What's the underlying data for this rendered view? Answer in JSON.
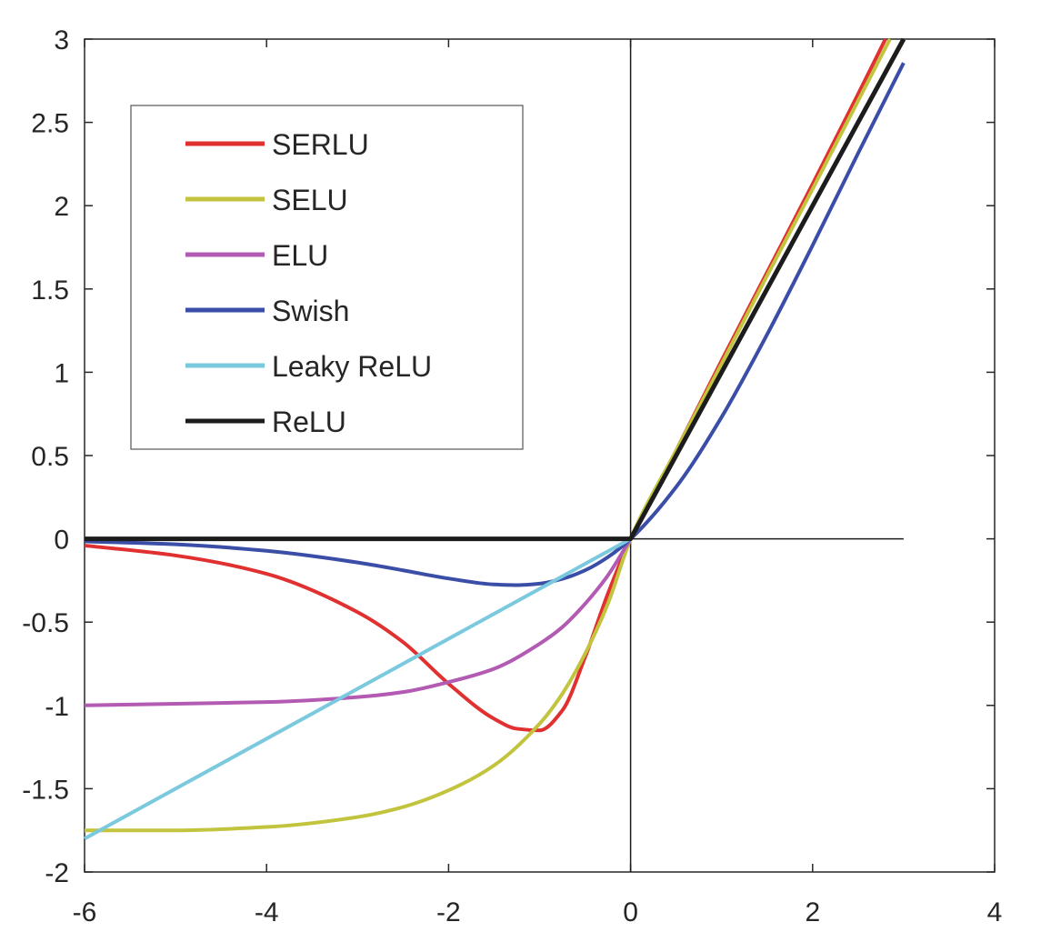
{
  "chart_data": {
    "type": "line",
    "title": "",
    "xlabel": "",
    "ylabel": "",
    "xlim": [
      -6,
      4
    ],
    "ylim": [
      -2,
      3
    ],
    "x_ticks": [
      -6,
      -4,
      -2,
      0,
      2,
      4
    ],
    "x_tick_labels": [
      "-6",
      "-4",
      "-2",
      "0",
      "2",
      "4"
    ],
    "y_ticks": [
      -2,
      -1.5,
      -1,
      -0.5,
      0,
      0.5,
      1,
      1.5,
      2,
      2.5,
      3
    ],
    "y_tick_labels": [
      "-2",
      "-1.5",
      "-1",
      "-0.5",
      "0",
      "0.5",
      "1",
      "1.5",
      "2",
      "2.5",
      "3"
    ],
    "grid": false,
    "axis_lines_through_origin": true,
    "legend_position": "top-left",
    "x_range_plotted": [
      -6,
      3
    ],
    "series": [
      {
        "name": "SERLU",
        "color": "#e03030",
        "x": [
          -6,
          -5,
          -4,
          -3,
          -2.5,
          -2,
          -1.5,
          -1.25,
          -1,
          -0.75,
          -0.5,
          -0.25,
          0,
          0.5,
          1,
          1.5,
          2,
          2.5,
          2.8
        ],
        "y": [
          -0.04,
          -0.1,
          -0.21,
          -0.44,
          -0.62,
          -0.87,
          -1.08,
          -1.14,
          -1.15,
          -1.03,
          -0.71,
          -0.33,
          0,
          0.53,
          1.07,
          1.6,
          2.13,
          2.67,
          3.0
        ]
      },
      {
        "name": "SELU",
        "color": "#c2c43e",
        "x": [
          -6,
          -5,
          -4,
          -3,
          -2.5,
          -2,
          -1.5,
          -1,
          -0.75,
          -0.5,
          -0.25,
          0,
          0.5,
          1,
          1.5,
          2,
          2.5,
          2.85
        ],
        "y": [
          -1.75,
          -1.75,
          -1.73,
          -1.67,
          -1.61,
          -1.51,
          -1.36,
          -1.11,
          -0.93,
          -0.69,
          -0.39,
          0,
          0.53,
          1.05,
          1.58,
          2.1,
          2.63,
          3.0
        ]
      },
      {
        "name": "ELU",
        "color": "#b35ab3",
        "x": [
          -6,
          -5,
          -4,
          -3,
          -2.5,
          -2,
          -1.5,
          -1,
          -0.75,
          -0.5,
          -0.25,
          0
        ],
        "y": [
          -1.0,
          -0.99,
          -0.98,
          -0.95,
          -0.92,
          -0.86,
          -0.78,
          -0.63,
          -0.53,
          -0.39,
          -0.22,
          0
        ]
      },
      {
        "name": "Swish",
        "color": "#3a4ea8",
        "x": [
          -6,
          -5,
          -4,
          -3,
          -2.5,
          -2,
          -1.5,
          -1.25,
          -1,
          -0.75,
          -0.5,
          -0.25,
          0,
          0.5,
          1,
          1.5,
          2,
          2.5,
          3
        ],
        "y": [
          -0.015,
          -0.033,
          -0.072,
          -0.142,
          -0.189,
          -0.238,
          -0.274,
          -0.278,
          -0.269,
          -0.24,
          -0.189,
          -0.11,
          0,
          0.311,
          0.731,
          1.227,
          1.762,
          2.315,
          2.857
        ]
      },
      {
        "name": "Leaky ReLU",
        "color": "#7ac9de",
        "x": [
          -6,
          0
        ],
        "y": [
          -1.8,
          0
        ]
      },
      {
        "name": "ReLU",
        "color": "#1c1c1c",
        "x": [
          -6,
          0,
          3
        ],
        "y": [
          0,
          0,
          3
        ]
      }
    ]
  }
}
